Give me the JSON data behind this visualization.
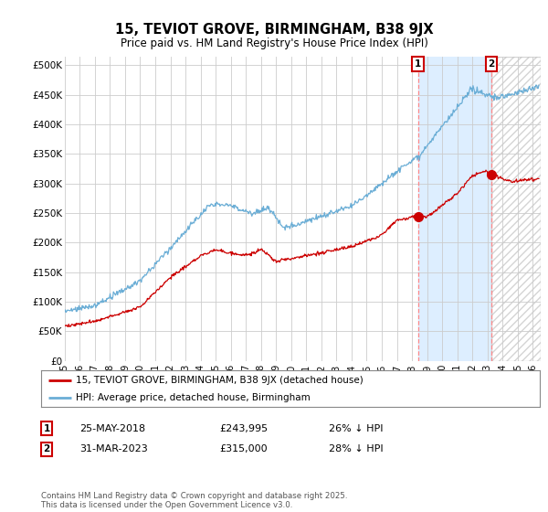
{
  "title": "15, TEVIOT GROVE, BIRMINGHAM, B38 9JX",
  "subtitle": "Price paid vs. HM Land Registry's House Price Index (HPI)",
  "ylabel_ticks": [
    "£0",
    "£50K",
    "£100K",
    "£150K",
    "£200K",
    "£250K",
    "£300K",
    "£350K",
    "£400K",
    "£450K",
    "£500K"
  ],
  "ytick_values": [
    0,
    50000,
    100000,
    150000,
    200000,
    250000,
    300000,
    350000,
    400000,
    450000,
    500000
  ],
  "ylim": [
    0,
    515000
  ],
  "xlim_start": 1995.0,
  "xlim_end": 2026.5,
  "background_color": "#ffffff",
  "plot_bg_color": "#ffffff",
  "grid_color": "#cccccc",
  "annotation1": {
    "x": 2018.4,
    "label": "1",
    "date": "25-MAY-2018",
    "price": "£243,995",
    "hpi": "26% ↓ HPI"
  },
  "annotation2": {
    "x": 2023.25,
    "label": "2",
    "date": "31-MAR-2023",
    "price": "£315,000",
    "hpi": "28% ↓ HPI"
  },
  "legend_line1": "15, TEVIOT GROVE, BIRMINGHAM, B38 9JX (detached house)",
  "legend_line2": "HPI: Average price, detached house, Birmingham",
  "footer": "Contains HM Land Registry data © Crown copyright and database right 2025.\nThis data is licensed under the Open Government Licence v3.0.",
  "red_color": "#cc0000",
  "blue_color": "#6baed6",
  "shade_color": "#ddeeff",
  "sale1_x": 2018.4,
  "sale1_y": 243995,
  "sale2_x": 2023.25,
  "sale2_y": 315000
}
